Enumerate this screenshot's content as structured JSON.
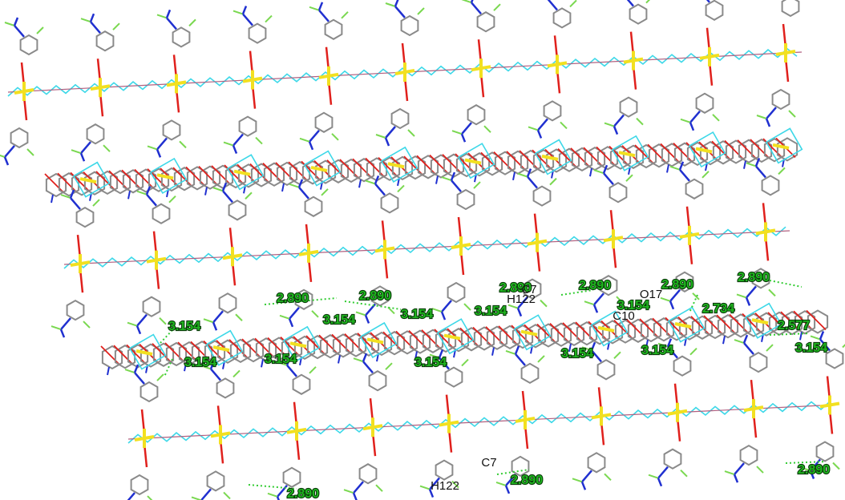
{
  "distance_labels": [
    "2.890",
    "2.890",
    "2.890",
    "2.890",
    "2.890",
    "2.890",
    "3.154",
    "3.154",
    "3.154",
    "3.154",
    "3.154",
    "2.734",
    "2.577",
    "3.154",
    "3.154",
    "3.154",
    "3.154",
    "3.154",
    "3.154",
    "2.890",
    "2.890",
    "2.890"
  ],
  "atom_labels": [
    "C7",
    "H122",
    "O17",
    "C10",
    "C7",
    "H122"
  ]
}
